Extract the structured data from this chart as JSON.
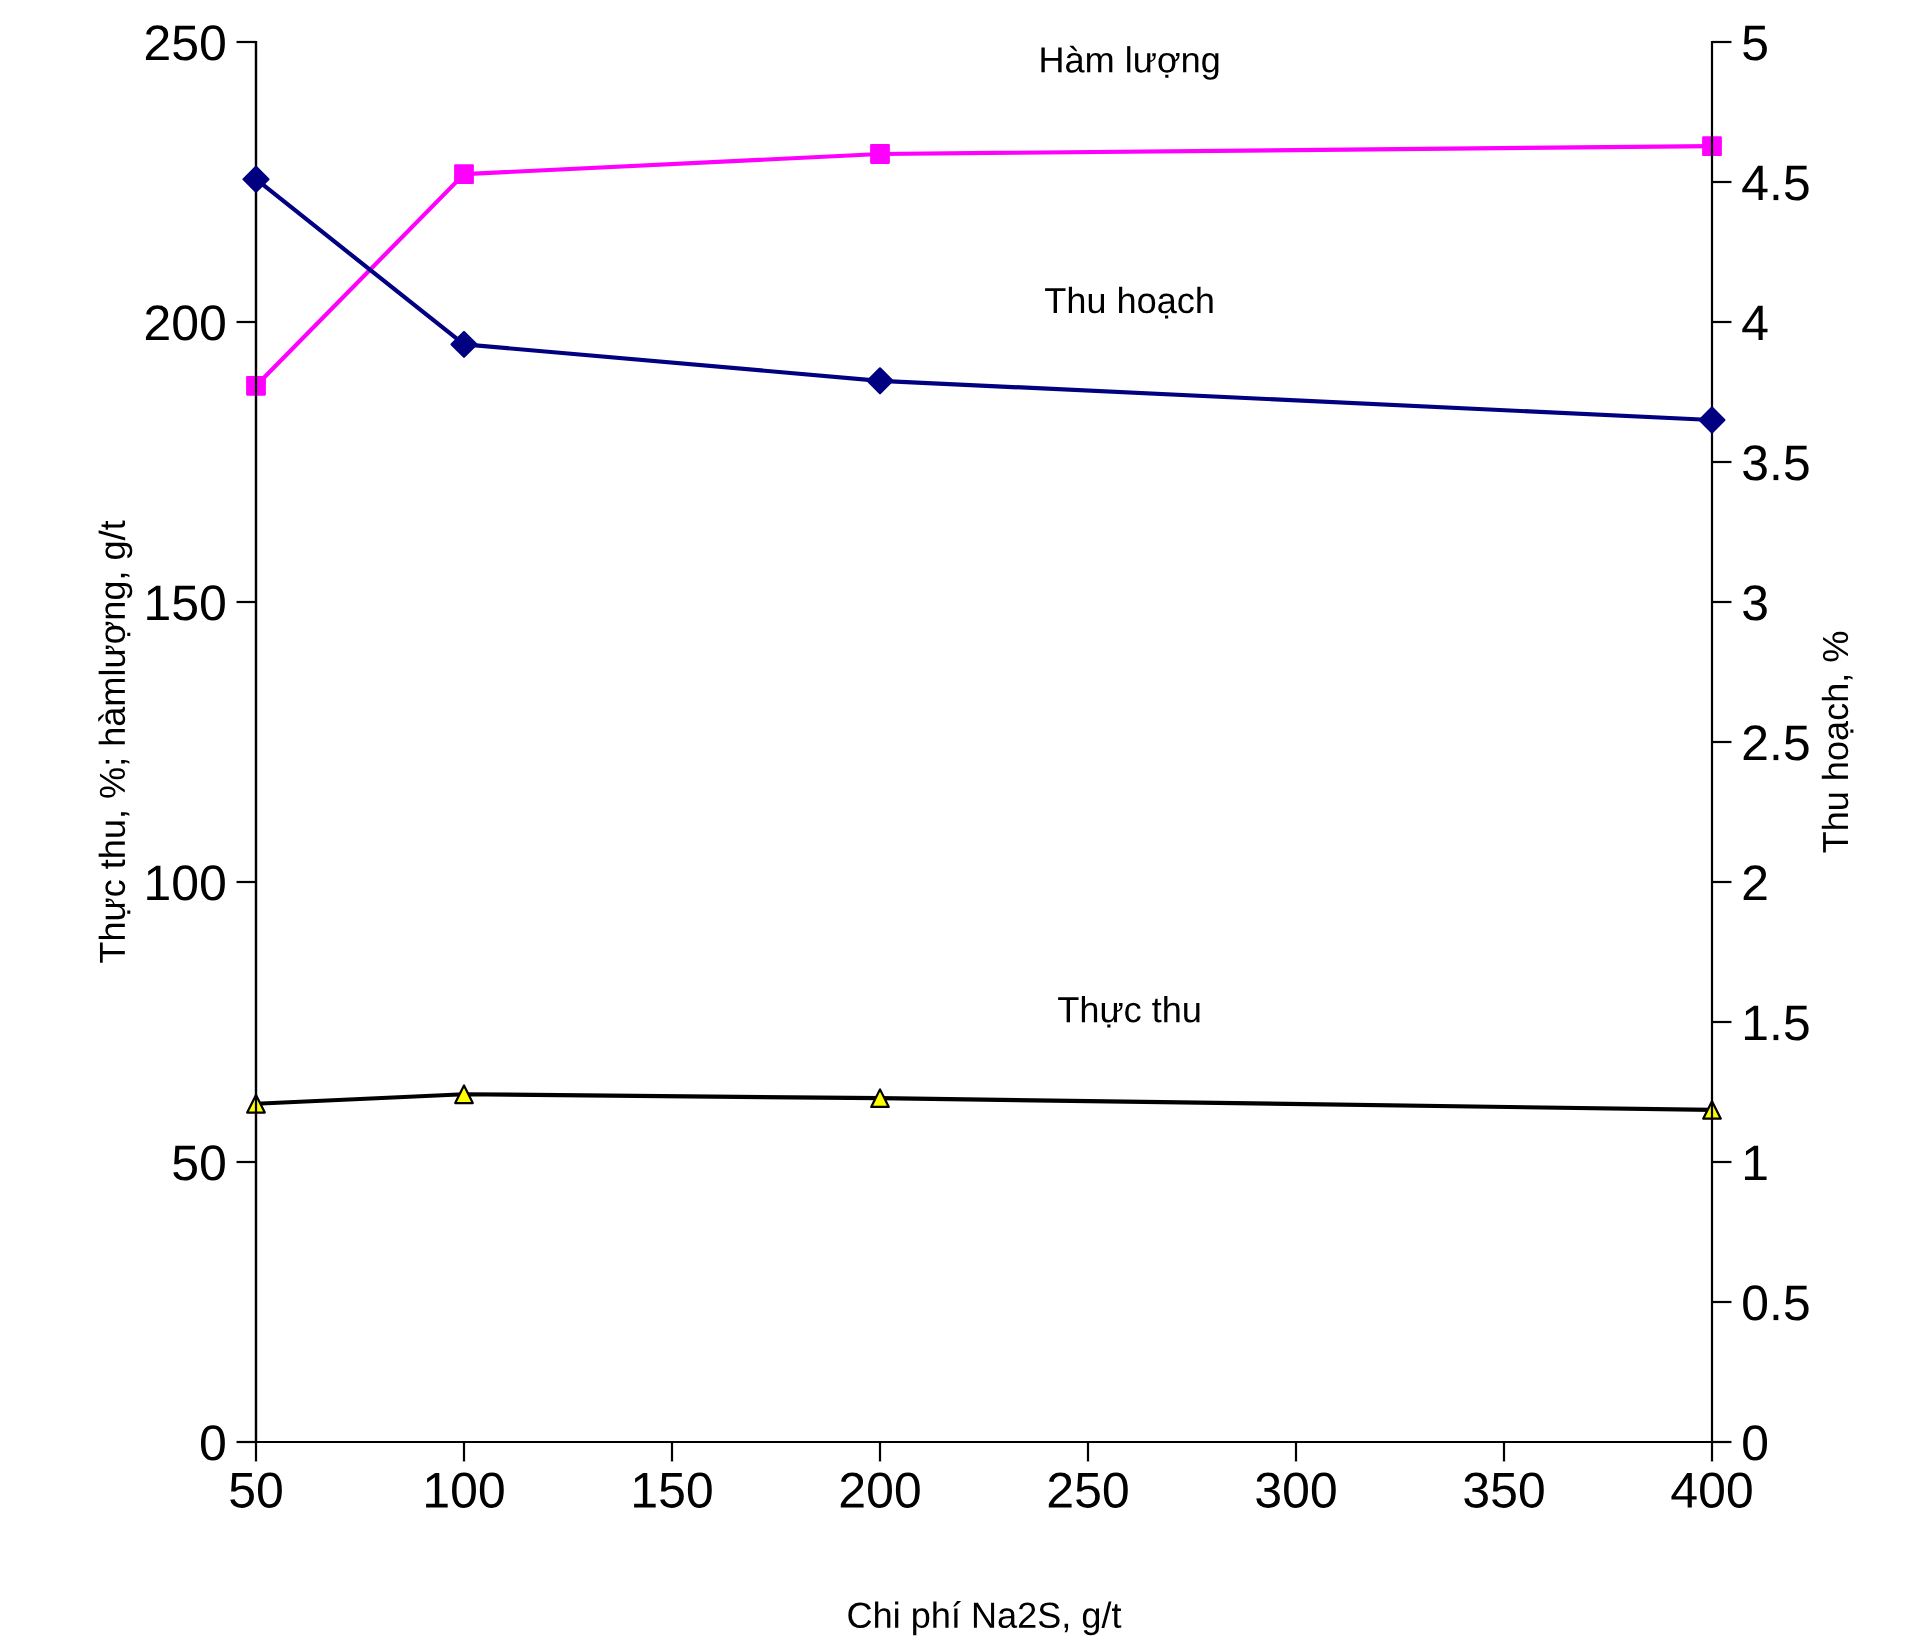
{
  "chart_data": {
    "type": "line",
    "xlabel": "Chi phí Na2S, g/t",
    "ylabel": "Thực thu, %; hàmlượng, g/t",
    "y2label": "Thu hoạch, %",
    "x": [
      50,
      100,
      200,
      400
    ],
    "series": [
      {
        "name": "Hàm lượng",
        "color": "#ff00ff",
        "values": [
          188.6,
          226.4,
          230,
          231.4
        ],
        "marker": "square"
      },
      {
        "name": "Thu hoạch",
        "color": "#000080",
        "values": [
          4.51,
          3.92,
          3.79,
          3.65
        ],
        "marker": "diamond",
        "axis": "y2"
      },
      {
        "name": "Thực thu",
        "color": "#000000",
        "colors": [
          "#ffff00",
          "#ffff00",
          "#ffff00",
          "#ffff00"
        ],
        "values": [
          60.4,
          62.1,
          61.4,
          59.3
        ],
        "marker": "triangle"
      }
    ],
    "xlim": [
      50,
      400
    ],
    "xticks": [
      50,
      100,
      150,
      200,
      250,
      300,
      350,
      400
    ],
    "ylim": [
      0,
      250
    ],
    "yticks": [
      0,
      50,
      100,
      150,
      200,
      250
    ],
    "y2lim": [
      0,
      5
    ],
    "y2ticks": [
      0,
      0.5,
      1,
      1.5,
      2,
      2.5,
      3,
      3.5,
      4,
      4.5,
      5
    ],
    "grid": false,
    "legend": false
  }
}
